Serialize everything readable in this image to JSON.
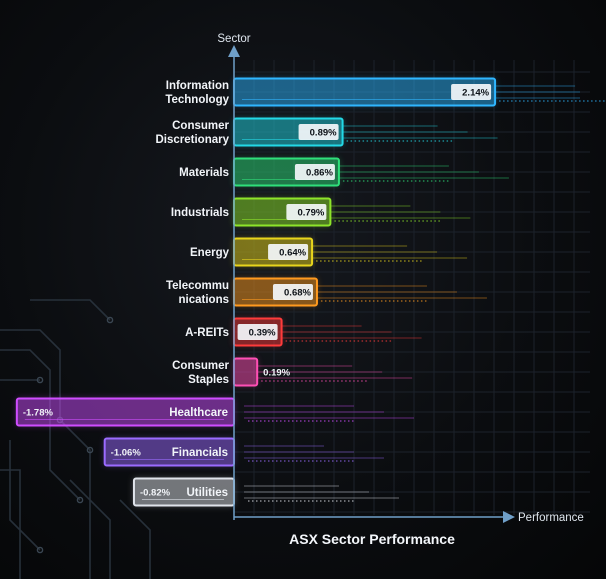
{
  "chart_data": {
    "type": "bar",
    "orientation": "horizontal",
    "title": "ASX Sector Performance",
    "xlabel": "Performance",
    "ylabel": "Sector",
    "categories": [
      "Information Technology",
      "Consumer Discretionary",
      "Materials",
      "Industrials",
      "Energy",
      "Telecommunications",
      "A-REITs",
      "Consumer Staples",
      "Healthcare",
      "Financials",
      "Utilities"
    ],
    "value_labels": [
      "2.14%",
      "0.89%",
      "0.86%",
      "0.79%",
      "0.64%",
      "0.68%",
      "0.39%",
      "0.19%",
      "-1.78%",
      "-1.06%",
      "-0.82%"
    ],
    "values": [
      2.14,
      0.89,
      0.86,
      0.79,
      0.64,
      0.68,
      0.39,
      0.19,
      -1.78,
      -1.06,
      -0.82
    ],
    "colors": [
      "#2fb6ff",
      "#23d9e6",
      "#2fe07a",
      "#8ee52a",
      "#e8d51c",
      "#ff9a1f",
      "#ff3b3b",
      "#ff4fb5",
      "#cf4dff",
      "#9b6bff",
      "#dfe3ea"
    ],
    "grid": true
  }
}
